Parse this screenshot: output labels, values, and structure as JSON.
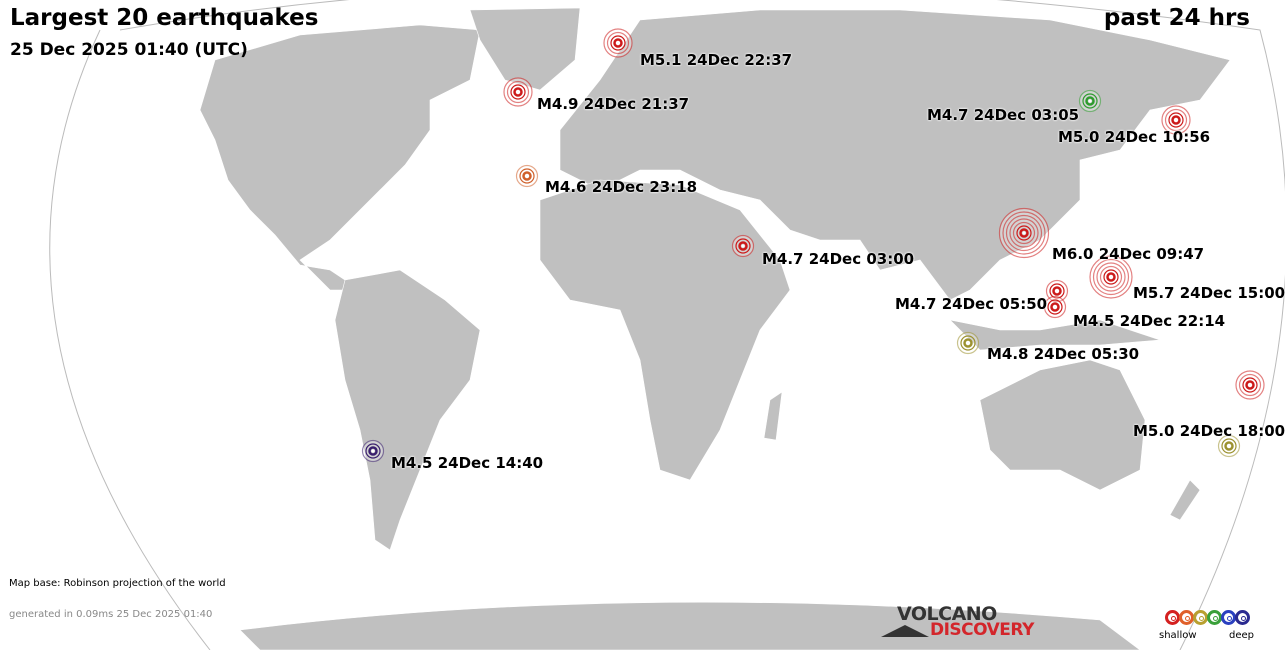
{
  "header": {
    "title": "Largest 20 earthquakes",
    "datetime": "25 Dec 2025 01:40 (UTC)",
    "period": "past 24 hrs"
  },
  "map": {
    "projection_note": "Map base: Robinson projection of the world",
    "generated": "generated in 0.09ms 25 Dec 2025 01:40",
    "land_color": "#c0c0c0",
    "ocean_color": "#ffffff"
  },
  "depth_colors": {
    "shallow": "#cc1a1a",
    "shallow_mid": "#d0602a",
    "intermediate": "#9c9230",
    "mid_deep": "#2e9c2e",
    "deep": "#2a2aa0",
    "very_deep": "#3a1f6e"
  },
  "earthquakes": [
    {
      "mag": 5.1,
      "label": "M5.1 24Dec 22:37",
      "depth": "shallow"
    },
    {
      "mag": 4.9,
      "label": "M4.9 24Dec 21:37",
      "depth": "shallow"
    },
    {
      "mag": 4.7,
      "label": "M4.7 24Dec 03:05",
      "depth": "mid_deep"
    },
    {
      "mag": 5.0,
      "label": "M5.0 24Dec 10:56",
      "depth": "shallow"
    },
    {
      "mag": 4.6,
      "label": "M4.6 24Dec 23:18",
      "depth": "shallow_mid"
    },
    {
      "mag": 6.0,
      "label": "M6.0 24Dec 09:47",
      "depth": "shallow"
    },
    {
      "mag": 4.7,
      "label": "M4.7 24Dec 03:00",
      "depth": "shallow"
    },
    {
      "mag": 5.7,
      "label": "M5.7 24Dec 15:00",
      "depth": "shallow"
    },
    {
      "mag": 4.7,
      "label": "M4.7 24Dec 05:50",
      "depth": "shallow"
    },
    {
      "mag": 4.5,
      "label": "M4.5 24Dec 22:14",
      "depth": "shallow"
    },
    {
      "mag": 4.8,
      "label": "M4.8 24Dec 05:30",
      "depth": "intermediate"
    },
    {
      "mag": 5.0,
      "label": "M5.0 24Dec 18:00",
      "depth": "shallow"
    },
    {
      "mag": 4.5,
      "label": "M4.5 24Dec 14:40",
      "depth": "very_deep"
    },
    {
      "mag": null,
      "label": "",
      "depth": "intermediate"
    }
  ],
  "logo": {
    "line1": "VOLCANO",
    "line2": "DISCOVERY"
  },
  "legend": {
    "shallow_label": "shallow",
    "deep_label": "deep",
    "colors": [
      "#d42020",
      "#e0602a",
      "#b8a030",
      "#3aa03a",
      "#2a40c0",
      "#2a2a90"
    ]
  }
}
